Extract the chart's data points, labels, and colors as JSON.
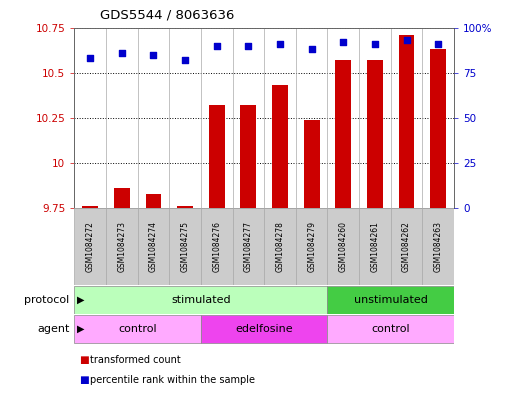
{
  "title": "GDS5544 / 8063636",
  "samples": [
    "GSM1084272",
    "GSM1084273",
    "GSM1084274",
    "GSM1084275",
    "GSM1084276",
    "GSM1084277",
    "GSM1084278",
    "GSM1084279",
    "GSM1084260",
    "GSM1084261",
    "GSM1084262",
    "GSM1084263"
  ],
  "transformed_count": [
    9.76,
    9.86,
    9.83,
    9.76,
    10.32,
    10.32,
    10.43,
    10.24,
    10.57,
    10.57,
    10.71,
    10.63
  ],
  "percentile_rank": [
    83,
    86,
    85,
    82,
    90,
    90,
    91,
    88,
    92,
    91,
    93,
    91
  ],
  "ylim_left": [
    9.75,
    10.75
  ],
  "ylim_right": [
    0,
    100
  ],
  "yticks_left": [
    9.75,
    10.0,
    10.25,
    10.5,
    10.75
  ],
  "yticks_right": [
    0,
    25,
    50,
    75,
    100
  ],
  "ytick_labels_left": [
    "9.75",
    "10",
    "10.25",
    "10.5",
    "10.75"
  ],
  "ytick_labels_right": [
    "0",
    "25",
    "50",
    "75",
    "100%"
  ],
  "bar_color": "#cc0000",
  "dot_color": "#0000cc",
  "bar_bottom": 9.75,
  "protocol_groups": [
    {
      "label": "stimulated",
      "start": 0,
      "end": 7,
      "color": "#bbffbb"
    },
    {
      "label": "unstimulated",
      "start": 8,
      "end": 11,
      "color": "#44cc44"
    }
  ],
  "agent_groups": [
    {
      "label": "control",
      "start": 0,
      "end": 3,
      "color": "#ffaaff"
    },
    {
      "label": "edelfosine",
      "start": 4,
      "end": 7,
      "color": "#ee44ee"
    },
    {
      "label": "control",
      "start": 8,
      "end": 11,
      "color": "#ffaaff"
    }
  ],
  "legend_items": [
    {
      "label": "transformed count",
      "color": "#cc0000"
    },
    {
      "label": "percentile rank within the sample",
      "color": "#0000cc"
    }
  ],
  "protocol_label": "protocol",
  "agent_label": "agent",
  "background_color": "#ffffff",
  "tick_color_left": "#cc0000",
  "tick_color_right": "#0000cc",
  "sample_box_color": "#cccccc",
  "sample_box_edge": "#aaaaaa"
}
